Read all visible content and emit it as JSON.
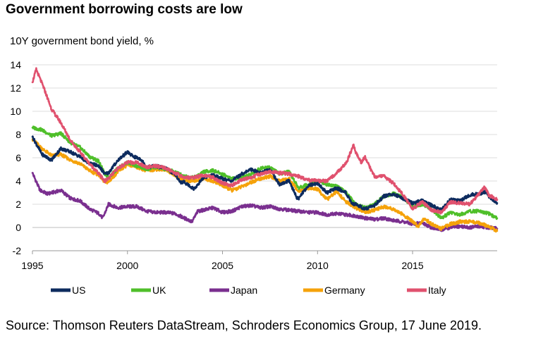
{
  "chart_data": {
    "type": "line",
    "title": "Government borrowing costs are low",
    "ylabel": "10Y government bond yield, %",
    "xlabel": "",
    "source": "Source: Thomson Reuters DataStream, Schroders Economics Group, 17 June 2019.",
    "xlim": [
      1995,
      2019.45
    ],
    "ylim": [
      -2,
      14
    ],
    "y_ticks": [
      -2,
      0,
      2,
      4,
      6,
      8,
      10,
      12,
      14
    ],
    "x_ticks": [
      1995,
      2000,
      2005,
      2010,
      2015
    ],
    "grid": "horizontal",
    "legend_position": "bottom",
    "series": [
      {
        "name": "US",
        "color": "#0d2b5e",
        "x": [
          1995,
          1995.5,
          1996,
          1996.5,
          1997,
          1997.5,
          1998,
          1998.5,
          1998.8,
          1999,
          1999.5,
          2000,
          2000.3,
          2000.7,
          2001,
          2001.5,
          2002,
          2002.5,
          2002.8,
          2003,
          2003.5,
          2004,
          2004.5,
          2005,
          2005.5,
          2006,
          2006.5,
          2007,
          2007.5,
          2008,
          2008.5,
          2008.9,
          2009,
          2009.5,
          2010,
          2010.5,
          2011,
          2011.5,
          2011.8,
          2012,
          2012.5,
          2013,
          2013.5,
          2014,
          2014.5,
          2015,
          2015.5,
          2016,
          2016.5,
          2017,
          2017.5,
          2018,
          2018.5,
          2018.9,
          2019,
          2019.45
        ],
        "y": [
          7.8,
          6.3,
          5.8,
          6.8,
          6.5,
          6.1,
          5.5,
          5.3,
          4.6,
          4.7,
          5.8,
          6.5,
          6.1,
          5.9,
          5.2,
          5.3,
          5.1,
          4.6,
          3.9,
          3.9,
          3.3,
          4.3,
          4.5,
          4.2,
          4.0,
          4.6,
          5.0,
          4.7,
          5.0,
          3.7,
          4.0,
          2.6,
          2.5,
          3.6,
          3.8,
          3.0,
          3.4,
          3.0,
          2.0,
          2.0,
          1.6,
          1.9,
          2.7,
          2.9,
          2.5,
          2.1,
          2.3,
          1.9,
          1.5,
          2.4,
          2.3,
          2.8,
          2.9,
          3.1,
          2.7,
          2.1
        ]
      },
      {
        "name": "UK",
        "color": "#4fbf2a",
        "x": [
          1995,
          1995.5,
          1996,
          1996.5,
          1997,
          1997.5,
          1998,
          1998.5,
          1998.8,
          1999,
          1999.5,
          2000,
          2000.5,
          2001,
          2001.5,
          2002,
          2002.5,
          2003,
          2003.5,
          2004,
          2004.5,
          2005,
          2005.5,
          2006,
          2006.5,
          2007,
          2007.5,
          2008,
          2008.5,
          2009,
          2009.5,
          2010,
          2010.5,
          2011,
          2011.5,
          2012,
          2012.5,
          2013,
          2013.5,
          2014,
          2014.5,
          2015,
          2015.5,
          2016,
          2016.5,
          2017,
          2017.5,
          2018,
          2018.5,
          2019,
          2019.45
        ],
        "y": [
          8.6,
          8.4,
          7.9,
          8.1,
          7.3,
          6.9,
          6.1,
          5.7,
          4.6,
          4.3,
          5.1,
          5.6,
          5.3,
          5.0,
          5.2,
          5.0,
          4.8,
          4.4,
          4.3,
          4.8,
          4.9,
          4.6,
          4.2,
          4.3,
          4.6,
          5.1,
          5.2,
          4.6,
          4.8,
          3.4,
          3.7,
          4.0,
          3.7,
          3.6,
          3.0,
          2.0,
          1.7,
          2.0,
          2.7,
          2.9,
          2.6,
          1.8,
          2.0,
          1.6,
          0.8,
          1.3,
          1.1,
          1.4,
          1.4,
          1.2,
          0.8
        ]
      },
      {
        "name": "Japan",
        "color": "#7a2f8f",
        "x": [
          1995,
          1995.4,
          1995.8,
          1996.5,
          1997,
          1997.5,
          1998,
          1998.5,
          1998.7,
          1999,
          1999.5,
          2000,
          2000.5,
          2001,
          2001.5,
          2002,
          2002.5,
          2003,
          2003.4,
          2003.7,
          2004,
          2004.5,
          2005,
          2005.5,
          2006,
          2006.5,
          2007,
          2007.5,
          2008,
          2008.5,
          2009,
          2009.5,
          2010,
          2010.5,
          2011,
          2011.5,
          2012,
          2012.5,
          2013,
          2013.5,
          2014,
          2014.5,
          2015,
          2015.5,
          2016,
          2016.5,
          2017,
          2017.5,
          2018,
          2018.5,
          2019,
          2019.45
        ],
        "y": [
          4.7,
          3.2,
          2.9,
          3.2,
          2.5,
          2.3,
          1.6,
          1.2,
          0.8,
          2.0,
          1.7,
          1.8,
          1.8,
          1.4,
          1.3,
          1.3,
          1.2,
          0.8,
          0.5,
          1.4,
          1.5,
          1.7,
          1.3,
          1.4,
          1.8,
          1.9,
          1.7,
          1.8,
          1.6,
          1.5,
          1.4,
          1.3,
          1.3,
          1.1,
          1.2,
          1.1,
          1.0,
          0.8,
          0.7,
          0.8,
          0.6,
          0.5,
          0.3,
          0.4,
          0.0,
          -0.2,
          0.0,
          0.1,
          0.0,
          0.1,
          0.0,
          -0.1
        ]
      },
      {
        "name": "Germany",
        "color": "#f5a20a",
        "x": [
          1995,
          1995.5,
          1996,
          1996.5,
          1997,
          1997.5,
          1998,
          1998.5,
          1998.8,
          1999,
          1999.5,
          2000,
          2000.5,
          2001,
          2001.5,
          2002,
          2002.5,
          2003,
          2003.5,
          2004,
          2004.5,
          2005,
          2005.5,
          2006,
          2006.5,
          2007,
          2007.5,
          2008,
          2008.5,
          2009,
          2009.5,
          2010,
          2010.5,
          2011,
          2011.5,
          2012,
          2012.5,
          2013,
          2013.5,
          2014,
          2014.5,
          2015,
          2015.3,
          2015.6,
          2016,
          2016.5,
          2017,
          2017.5,
          2018,
          2018.5,
          2019,
          2019.45
        ],
        "y": [
          7.6,
          6.8,
          6.2,
          6.3,
          5.8,
          5.5,
          4.9,
          4.5,
          3.9,
          3.9,
          4.8,
          5.4,
          5.2,
          4.9,
          5.0,
          5.0,
          4.5,
          4.0,
          4.0,
          4.2,
          4.0,
          3.6,
          3.2,
          3.5,
          3.9,
          4.2,
          4.4,
          4.0,
          4.2,
          3.1,
          3.4,
          3.3,
          2.4,
          3.1,
          2.2,
          1.7,
          1.3,
          1.5,
          1.8,
          1.6,
          1.1,
          0.5,
          0.1,
          0.8,
          0.3,
          -0.1,
          0.3,
          0.5,
          0.5,
          0.4,
          0.1,
          -0.3
        ]
      },
      {
        "name": "Italy",
        "color": "#e0516e",
        "x": [
          1995,
          1995.2,
          1995.6,
          1996,
          1996.5,
          1997,
          1997.5,
          1998,
          1998.5,
          1998.8,
          1999,
          1999.5,
          2000,
          2000.5,
          2001,
          2001.5,
          2002,
          2002.5,
          2003,
          2003.5,
          2004,
          2004.5,
          2005,
          2005.5,
          2006,
          2006.5,
          2007,
          2007.5,
          2008,
          2008.5,
          2009,
          2009.5,
          2010,
          2010.5,
          2011,
          2011.5,
          2011.9,
          2012,
          2012.3,
          2012.5,
          2012.8,
          2013,
          2013.5,
          2014,
          2014.5,
          2015,
          2015.5,
          2016,
          2016.5,
          2017,
          2017.5,
          2018,
          2018.5,
          2018.8,
          2019,
          2019.45
        ],
        "y": [
          12.5,
          13.6,
          12.0,
          10.2,
          9.0,
          7.5,
          6.5,
          5.5,
          4.6,
          4.0,
          4.2,
          5.1,
          5.6,
          5.6,
          5.2,
          5.3,
          5.1,
          4.7,
          4.3,
          4.3,
          4.5,
          4.3,
          3.8,
          3.6,
          4.1,
          4.3,
          4.6,
          4.8,
          4.7,
          4.6,
          4.4,
          4.1,
          4.0,
          4.0,
          4.7,
          5.5,
          7.1,
          6.5,
          5.6,
          6.1,
          5.0,
          4.4,
          4.4,
          3.8,
          2.8,
          1.6,
          2.2,
          1.5,
          1.3,
          2.2,
          2.1,
          2.0,
          2.9,
          3.5,
          2.8,
          2.4
        ]
      }
    ]
  }
}
